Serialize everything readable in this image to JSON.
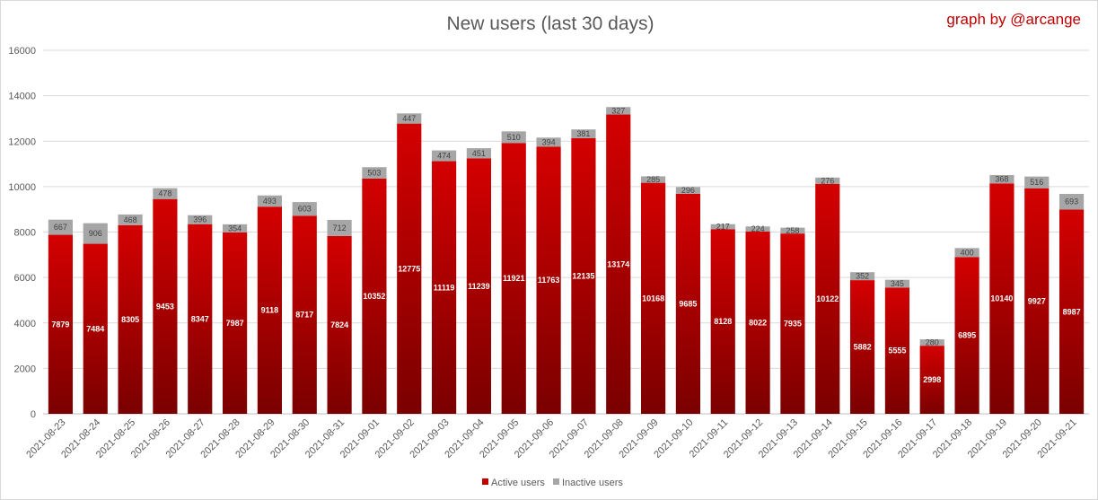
{
  "chart_data": {
    "type": "bar",
    "stacked": true,
    "title": "New users (last 30 days)",
    "credit": "graph by @arcange",
    "ylim": [
      0,
      16000
    ],
    "yticks": [
      0,
      2000,
      4000,
      6000,
      8000,
      10000,
      12000,
      14000,
      16000
    ],
    "grid": true,
    "legend_position": "bottom",
    "categories": [
      "2021-08-23",
      "2021-08-24",
      "2021-08-25",
      "2021-08-26",
      "2021-08-27",
      "2021-08-28",
      "2021-08-29",
      "2021-08-30",
      "2021-08-31",
      "2021-09-01",
      "2021-09-02",
      "2021-09-03",
      "2021-09-04",
      "2021-09-05",
      "2021-09-06",
      "2021-09-07",
      "2021-09-08",
      "2021-09-09",
      "2021-09-10",
      "2021-09-11",
      "2021-09-12",
      "2021-09-13",
      "2021-09-14",
      "2021-09-15",
      "2021-09-16",
      "2021-09-17",
      "2021-09-18",
      "2021-09-19",
      "2021-09-20",
      "2021-09-21"
    ],
    "series": [
      {
        "name": "Active users",
        "color": "#c00000",
        "values": [
          7879,
          7484,
          8305,
          9453,
          8347,
          7987,
          9118,
          8717,
          7824,
          10352,
          12775,
          11119,
          11239,
          11921,
          11763,
          12135,
          13174,
          10168,
          9685,
          8128,
          8022,
          7935,
          10122,
          5882,
          5555,
          2998,
          6895,
          10140,
          9927,
          8987
        ]
      },
      {
        "name": "Inactive users",
        "color": "#a6a6a6",
        "values": [
          667,
          906,
          468,
          478,
          396,
          354,
          493,
          603,
          712,
          503,
          447,
          474,
          451,
          510,
          394,
          381,
          327,
          285,
          296,
          217,
          224,
          258,
          276,
          352,
          345,
          280,
          400,
          368,
          516,
          693
        ]
      }
    ]
  }
}
